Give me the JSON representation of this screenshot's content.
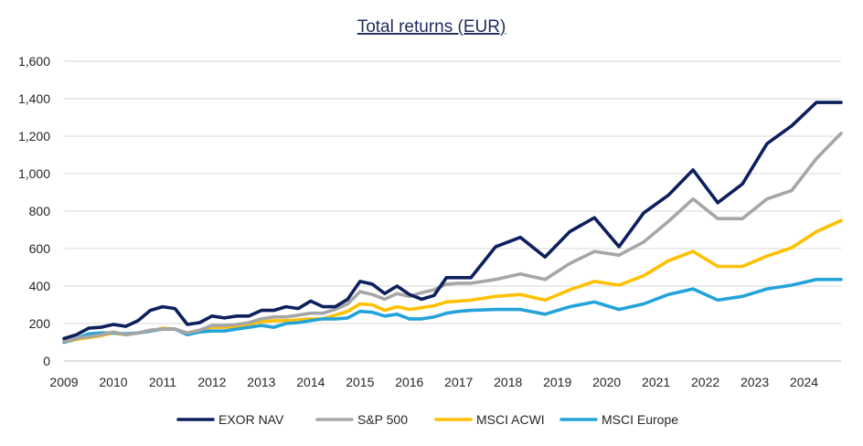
{
  "chart_data": {
    "type": "line",
    "title": "Total returns (EUR)",
    "xlabel": "",
    "ylabel": "",
    "ylim": [
      0,
      1600
    ],
    "xlim": [
      2009,
      2024.75
    ],
    "yticks": [
      "0",
      "200",
      "400",
      "600",
      "800",
      "1,000",
      "1,200",
      "1,400",
      "1,600"
    ],
    "xticks": [
      "2009",
      "2010",
      "2011",
      "2012",
      "2013",
      "2014",
      "2015",
      "2016",
      "2017",
      "2018",
      "2019",
      "2020",
      "2021",
      "2022",
      "2023",
      "2024"
    ],
    "grid": true,
    "legend_position": "bottom",
    "series": [
      {
        "name": "EXOR NAV",
        "color": "#0d1f5c",
        "points": [
          [
            2009,
            120
          ],
          [
            2009.25,
            140
          ],
          [
            2009.5,
            175
          ],
          [
            2009.75,
            180
          ],
          [
            2010,
            195
          ],
          [
            2010.25,
            185
          ],
          [
            2010.5,
            215
          ],
          [
            2010.75,
            270
          ],
          [
            2011,
            290
          ],
          [
            2011.25,
            280
          ],
          [
            2011.5,
            195
          ],
          [
            2011.75,
            205
          ],
          [
            2012,
            240
          ],
          [
            2012.25,
            230
          ],
          [
            2012.5,
            240
          ],
          [
            2012.75,
            240
          ],
          [
            2013,
            270
          ],
          [
            2013.25,
            270
          ],
          [
            2013.5,
            290
          ],
          [
            2013.75,
            280
          ],
          [
            2014,
            320
          ],
          [
            2014.25,
            290
          ],
          [
            2014.5,
            290
          ],
          [
            2014.75,
            330
          ],
          [
            2015,
            425
          ],
          [
            2015.25,
            410
          ],
          [
            2015.5,
            360
          ],
          [
            2015.75,
            400
          ],
          [
            2016,
            355
          ],
          [
            2016.25,
            330
          ],
          [
            2016.5,
            350
          ],
          [
            2016.75,
            445
          ],
          [
            2017,
            445
          ],
          [
            2017.25,
            445
          ],
          [
            2017.75,
            610
          ],
          [
            2018.25,
            660
          ],
          [
            2018.75,
            555
          ],
          [
            2019.25,
            690
          ],
          [
            2019.75,
            765
          ],
          [
            2020.25,
            610
          ],
          [
            2020.75,
            790
          ],
          [
            2021.25,
            885
          ],
          [
            2021.75,
            1020
          ],
          [
            2022.25,
            845
          ],
          [
            2022.75,
            945
          ],
          [
            2023.25,
            1160
          ],
          [
            2023.75,
            1255
          ],
          [
            2024.25,
            1380
          ],
          [
            2024.75,
            1380
          ]
        ]
      },
      {
        "name": "S&P 500",
        "color": "#a6a6a6",
        "points": [
          [
            2009,
            105
          ],
          [
            2009.25,
            120
          ],
          [
            2009.5,
            130
          ],
          [
            2009.75,
            140
          ],
          [
            2010,
            155
          ],
          [
            2010.25,
            140
          ],
          [
            2010.5,
            150
          ],
          [
            2010.75,
            165
          ],
          [
            2011,
            170
          ],
          [
            2011.25,
            170
          ],
          [
            2011.5,
            150
          ],
          [
            2011.75,
            165
          ],
          [
            2012,
            190
          ],
          [
            2012.25,
            190
          ],
          [
            2012.5,
            195
          ],
          [
            2012.75,
            205
          ],
          [
            2013,
            225
          ],
          [
            2013.25,
            235
          ],
          [
            2013.5,
            235
          ],
          [
            2013.75,
            245
          ],
          [
            2014,
            255
          ],
          [
            2014.25,
            255
          ],
          [
            2014.5,
            275
          ],
          [
            2014.75,
            305
          ],
          [
            2015,
            370
          ],
          [
            2015.25,
            355
          ],
          [
            2015.5,
            330
          ],
          [
            2015.75,
            360
          ],
          [
            2016,
            345
          ],
          [
            2016.25,
            365
          ],
          [
            2016.5,
            380
          ],
          [
            2016.75,
            410
          ],
          [
            2017,
            415
          ],
          [
            2017.25,
            415
          ],
          [
            2017.75,
            435
          ],
          [
            2018.25,
            465
          ],
          [
            2018.75,
            435
          ],
          [
            2019.25,
            520
          ],
          [
            2019.75,
            585
          ],
          [
            2020.25,
            565
          ],
          [
            2020.75,
            635
          ],
          [
            2021.25,
            745
          ],
          [
            2021.75,
            865
          ],
          [
            2022.25,
            760
          ],
          [
            2022.75,
            760
          ],
          [
            2023.25,
            865
          ],
          [
            2023.75,
            910
          ],
          [
            2024.25,
            1080
          ],
          [
            2024.75,
            1215
          ]
        ]
      },
      {
        "name": "MSCI ACWI",
        "color": "#ffc000",
        "points": [
          [
            2009,
            100
          ],
          [
            2009.25,
            115
          ],
          [
            2009.5,
            125
          ],
          [
            2009.75,
            135
          ],
          [
            2010,
            150
          ],
          [
            2010.25,
            140
          ],
          [
            2010.5,
            150
          ],
          [
            2010.75,
            160
          ],
          [
            2011,
            175
          ],
          [
            2011.25,
            170
          ],
          [
            2011.5,
            150
          ],
          [
            2011.75,
            160
          ],
          [
            2012,
            180
          ],
          [
            2012.25,
            180
          ],
          [
            2012.5,
            185
          ],
          [
            2012.75,
            195
          ],
          [
            2013,
            210
          ],
          [
            2013.25,
            215
          ],
          [
            2013.5,
            215
          ],
          [
            2013.75,
            220
          ],
          [
            2014,
            225
          ],
          [
            2014.25,
            225
          ],
          [
            2014.5,
            245
          ],
          [
            2014.75,
            265
          ],
          [
            2015,
            305
          ],
          [
            2015.25,
            300
          ],
          [
            2015.5,
            270
          ],
          [
            2015.75,
            290
          ],
          [
            2016,
            275
          ],
          [
            2016.25,
            285
          ],
          [
            2016.5,
            295
          ],
          [
            2016.75,
            315
          ],
          [
            2017,
            320
          ],
          [
            2017.25,
            325
          ],
          [
            2017.75,
            345
          ],
          [
            2018.25,
            355
          ],
          [
            2018.75,
            325
          ],
          [
            2019.25,
            380
          ],
          [
            2019.75,
            425
          ],
          [
            2020.25,
            405
          ],
          [
            2020.75,
            455
          ],
          [
            2021.25,
            535
          ],
          [
            2021.75,
            585
          ],
          [
            2022.25,
            505
          ],
          [
            2022.75,
            505
          ],
          [
            2023.25,
            560
          ],
          [
            2023.75,
            605
          ],
          [
            2024.25,
            690
          ],
          [
            2024.75,
            750
          ]
        ]
      },
      {
        "name": "MSCI Europe",
        "color": "#23a3da",
        "points": [
          [
            2009,
            100
          ],
          [
            2009.25,
            120
          ],
          [
            2009.5,
            145
          ],
          [
            2009.75,
            150
          ],
          [
            2010,
            150
          ],
          [
            2010.25,
            145
          ],
          [
            2010.5,
            150
          ],
          [
            2010.75,
            160
          ],
          [
            2011,
            170
          ],
          [
            2011.25,
            170
          ],
          [
            2011.5,
            140
          ],
          [
            2011.75,
            155
          ],
          [
            2012,
            160
          ],
          [
            2012.25,
            160
          ],
          [
            2012.5,
            170
          ],
          [
            2012.75,
            180
          ],
          [
            2013,
            190
          ],
          [
            2013.25,
            180
          ],
          [
            2013.5,
            200
          ],
          [
            2013.75,
            205
          ],
          [
            2014,
            215
          ],
          [
            2014.25,
            225
          ],
          [
            2014.5,
            225
          ],
          [
            2014.75,
            230
          ],
          [
            2015,
            265
          ],
          [
            2015.25,
            260
          ],
          [
            2015.5,
            240
          ],
          [
            2015.75,
            250
          ],
          [
            2016,
            225
          ],
          [
            2016.25,
            225
          ],
          [
            2016.5,
            235
          ],
          [
            2016.75,
            255
          ],
          [
            2017,
            265
          ],
          [
            2017.25,
            270
          ],
          [
            2017.75,
            275
          ],
          [
            2018.25,
            275
          ],
          [
            2018.75,
            250
          ],
          [
            2019.25,
            290
          ],
          [
            2019.75,
            315
          ],
          [
            2020.25,
            275
          ],
          [
            2020.75,
            305
          ],
          [
            2021.25,
            355
          ],
          [
            2021.75,
            385
          ],
          [
            2022.25,
            325
          ],
          [
            2022.75,
            345
          ],
          [
            2023.25,
            385
          ],
          [
            2023.75,
            405
          ],
          [
            2024.25,
            435
          ],
          [
            2024.75,
            435
          ]
        ]
      }
    ]
  }
}
